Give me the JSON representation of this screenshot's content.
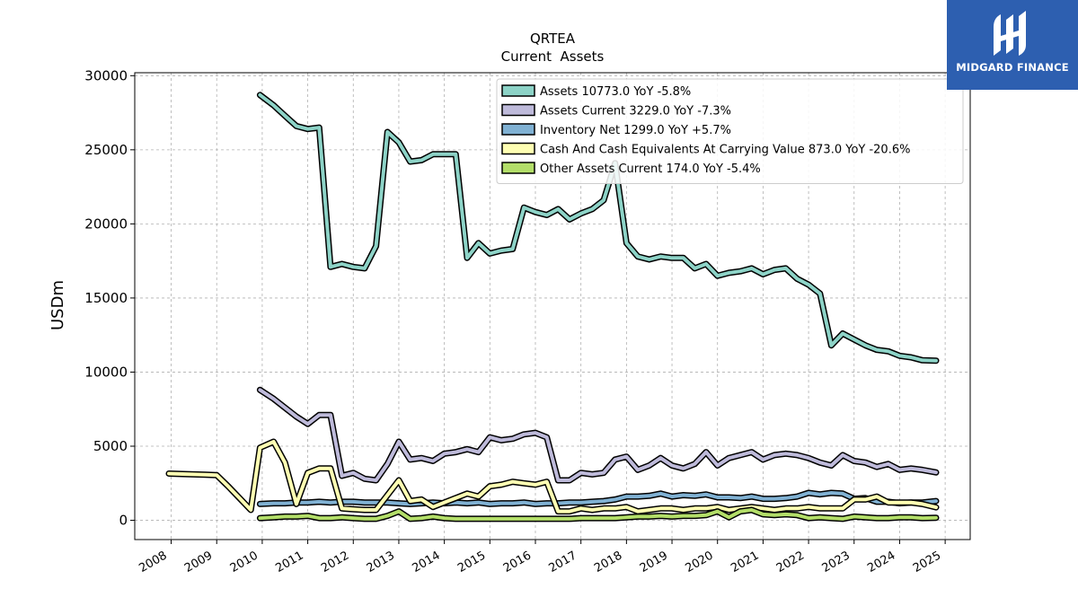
{
  "brand": {
    "name": "MIDGARD FINANCE",
    "bg_color": "#2d5fb0"
  },
  "chart_data": {
    "type": "line",
    "title": "QRTEA",
    "subtitle": "Current  Assets",
    "xlabel": "",
    "ylabel": "USDm",
    "xlim": [
      2007.2,
      2025.55
    ],
    "ylim": [
      -1300,
      30200
    ],
    "yticks": [
      0,
      5000,
      10000,
      15000,
      20000,
      25000,
      30000
    ],
    "xticks": [
      2008,
      2009,
      2010,
      2011,
      2012,
      2013,
      2014,
      2015,
      2016,
      2017,
      2018,
      2019,
      2020,
      2021,
      2022,
      2023,
      2024,
      2025
    ],
    "grid": true,
    "legend_position": "top-right",
    "series": [
      {
        "name": "Assets  10773.0 YoY -5.8%",
        "color": "#8dd3c7",
        "x": [
          2009.95,
          2010.25,
          2010.5,
          2010.75,
          2011.0,
          2011.25,
          2011.5,
          2011.75,
          2012.0,
          2012.25,
          2012.5,
          2012.75,
          2013.0,
          2013.25,
          2013.5,
          2013.75,
          2014.0,
          2014.25,
          2014.5,
          2014.75,
          2015.0,
          2015.25,
          2015.5,
          2015.75,
          2016.0,
          2016.25,
          2016.5,
          2016.75,
          2017.0,
          2017.25,
          2017.5,
          2017.75,
          2018.0,
          2018.25,
          2018.5,
          2018.75,
          2019.0,
          2019.25,
          2019.5,
          2019.75,
          2020.0,
          2020.25,
          2020.5,
          2020.75,
          2021.0,
          2021.25,
          2021.5,
          2021.75,
          2022.0,
          2022.25,
          2022.5,
          2022.75,
          2023.0,
          2023.25,
          2023.5,
          2023.75,
          2024.0,
          2024.25,
          2024.5,
          2024.8
        ],
        "values": [
          28700,
          28000,
          27300,
          26600,
          26400,
          26500,
          17100,
          17300,
          17100,
          17000,
          18500,
          26200,
          25500,
          24200,
          24300,
          24700,
          24700,
          24700,
          17700,
          18700,
          18000,
          18200,
          18300,
          21100,
          20800,
          20600,
          21000,
          20300,
          20700,
          21000,
          21600,
          24100,
          18700,
          17800,
          17600,
          17800,
          17700,
          17700,
          17000,
          17300,
          16500,
          16700,
          16800,
          17000,
          16600,
          16900,
          17000,
          16300,
          15900,
          15300,
          11800,
          12600,
          12200,
          11800,
          11500,
          11400,
          11100,
          11000,
          10800,
          10773
        ]
      },
      {
        "name": "Assets Current  3229.0 YoY -7.3%",
        "color": "#bebada",
        "x": [
          2009.95,
          2010.25,
          2010.5,
          2010.75,
          2011.0,
          2011.25,
          2011.5,
          2011.75,
          2012.0,
          2012.25,
          2012.5,
          2012.75,
          2013.0,
          2013.25,
          2013.5,
          2013.75,
          2014.0,
          2014.25,
          2014.5,
          2014.75,
          2015.0,
          2015.25,
          2015.5,
          2015.75,
          2016.0,
          2016.25,
          2016.5,
          2016.75,
          2017.0,
          2017.25,
          2017.5,
          2017.75,
          2018.0,
          2018.25,
          2018.5,
          2018.75,
          2019.0,
          2019.25,
          2019.5,
          2019.75,
          2020.0,
          2020.25,
          2020.5,
          2020.75,
          2021.0,
          2021.25,
          2021.5,
          2021.75,
          2022.0,
          2022.25,
          2022.5,
          2022.75,
          2023.0,
          2023.25,
          2023.5,
          2023.75,
          2024.0,
          2024.25,
          2024.5,
          2024.8
        ],
        "values": [
          8800,
          8200,
          7600,
          7000,
          6500,
          7100,
          7100,
          3000,
          3200,
          2800,
          2700,
          3800,
          5300,
          4100,
          4200,
          4000,
          4500,
          4600,
          4800,
          4600,
          5600,
          5400,
          5500,
          5800,
          5900,
          5600,
          2700,
          2700,
          3200,
          3100,
          3200,
          4100,
          4300,
          3400,
          3700,
          4200,
          3700,
          3500,
          3800,
          4600,
          3700,
          4200,
          4400,
          4600,
          4100,
          4400,
          4500,
          4400,
          4200,
          3900,
          3700,
          4400,
          4000,
          3900,
          3600,
          3800,
          3400,
          3500,
          3400,
          3229
        ]
      },
      {
        "name": "Inventory Net  1299.0 YoY +5.7%",
        "color": "#80b1d3",
        "x": [
          2009.95,
          2010.25,
          2010.5,
          2010.75,
          2011.0,
          2011.25,
          2011.5,
          2011.75,
          2012.0,
          2012.25,
          2012.5,
          2012.75,
          2013.0,
          2013.25,
          2013.5,
          2013.75,
          2014.0,
          2014.25,
          2014.5,
          2014.75,
          2015.0,
          2015.25,
          2015.5,
          2015.75,
          2016.0,
          2016.25,
          2016.5,
          2016.75,
          2017.0,
          2017.25,
          2017.5,
          2017.75,
          2018.0,
          2018.25,
          2018.5,
          2018.75,
          2019.0,
          2019.25,
          2019.5,
          2019.75,
          2020.0,
          2020.25,
          2020.5,
          2020.75,
          2021.0,
          2021.25,
          2021.5,
          2021.75,
          2022.0,
          2022.25,
          2022.5,
          2022.75,
          2023.0,
          2023.25,
          2023.5,
          2023.75,
          2024.0,
          2024.25,
          2024.5,
          2024.8
        ],
        "values": [
          1100,
          1150,
          1150,
          1200,
          1200,
          1250,
          1200,
          1250,
          1250,
          1200,
          1200,
          1200,
          1150,
          1100,
          1150,
          1200,
          1150,
          1200,
          1150,
          1200,
          1100,
          1150,
          1150,
          1200,
          1100,
          1150,
          1150,
          1200,
          1200,
          1250,
          1300,
          1400,
          1600,
          1600,
          1650,
          1800,
          1600,
          1700,
          1650,
          1750,
          1550,
          1550,
          1500,
          1600,
          1450,
          1450,
          1500,
          1600,
          1850,
          1750,
          1850,
          1800,
          1450,
          1500,
          1250,
          1250,
          1150,
          1200,
          1200,
          1299
        ]
      },
      {
        "name": "Cash And Cash Equivalents At Carrying Value  873.0 YoY -20.6%",
        "color": "#ffffb3",
        "x": [
          2007.95,
          2008.25,
          2008.5,
          2008.75,
          2009.0,
          2009.25,
          2009.5,
          2009.75,
          2009.95,
          2010.25,
          2010.5,
          2010.75,
          2011.0,
          2011.25,
          2011.5,
          2011.75,
          2012.0,
          2012.25,
          2012.5,
          2012.75,
          2013.0,
          2013.25,
          2013.5,
          2013.75,
          2014.0,
          2014.25,
          2014.5,
          2014.75,
          2015.0,
          2015.25,
          2015.5,
          2015.75,
          2016.0,
          2016.25,
          2016.5,
          2016.75,
          2017.0,
          2017.25,
          2017.5,
          2017.75,
          2018.0,
          2018.25,
          2018.5,
          2018.75,
          2019.0,
          2019.25,
          2019.5,
          2019.75,
          2020.0,
          2020.25,
          2020.5,
          2020.75,
          2021.0,
          2021.25,
          2021.5,
          2021.75,
          2022.0,
          2022.25,
          2022.5,
          2022.75,
          2023.0,
          2023.25,
          2023.5,
          2023.75,
          2024.0,
          2024.25,
          2024.5,
          2024.8
        ],
        "values": [
          3150,
          3120,
          3100,
          3080,
          3050,
          2300,
          1500,
          700,
          4900,
          5300,
          3900,
          1100,
          3200,
          3500,
          3500,
          800,
          750,
          700,
          700,
          1700,
          2700,
          1300,
          1400,
          900,
          1200,
          1500,
          1800,
          1600,
          2300,
          2400,
          2600,
          2500,
          2400,
          2600,
          600,
          600,
          800,
          700,
          800,
          800,
          900,
          600,
          700,
          800,
          800,
          700,
          800,
          800,
          900,
          700,
          800,
          900,
          800,
          700,
          800,
          800,
          900,
          800,
          800,
          800,
          1400,
          1400,
          1600,
          1200,
          1200,
          1200,
          1100,
          873
        ]
      },
      {
        "name": "Other Assets Current  174.0 YoY -5.4%",
        "color": "#b3de69",
        "x": [
          2009.95,
          2010.25,
          2010.5,
          2010.75,
          2011.0,
          2011.25,
          2011.5,
          2011.75,
          2012.0,
          2012.25,
          2012.5,
          2012.75,
          2013.0,
          2013.25,
          2013.5,
          2013.75,
          2014.0,
          2014.25,
          2014.5,
          2014.75,
          2015.0,
          2015.25,
          2015.5,
          2015.75,
          2016.0,
          2016.25,
          2016.5,
          2016.75,
          2017.0,
          2017.25,
          2017.5,
          2017.75,
          2018.0,
          2018.25,
          2018.5,
          2018.75,
          2019.0,
          2019.25,
          2019.5,
          2019.75,
          2020.0,
          2020.25,
          2020.5,
          2020.75,
          2021.0,
          2021.25,
          2021.5,
          2021.75,
          2022.0,
          2022.25,
          2022.5,
          2022.75,
          2023.0,
          2023.25,
          2023.5,
          2023.75,
          2024.0,
          2024.25,
          2024.5,
          2024.8
        ],
        "values": [
          150,
          200,
          250,
          250,
          300,
          150,
          150,
          200,
          150,
          100,
          100,
          300,
          600,
          100,
          150,
          250,
          150,
          100,
          100,
          100,
          100,
          100,
          100,
          100,
          100,
          100,
          100,
          100,
          150,
          150,
          150,
          150,
          200,
          250,
          250,
          300,
          250,
          300,
          300,
          350,
          600,
          200,
          600,
          700,
          400,
          350,
          400,
          350,
          150,
          200,
          150,
          100,
          250,
          200,
          150,
          150,
          200,
          200,
          150,
          174
        ]
      }
    ]
  }
}
